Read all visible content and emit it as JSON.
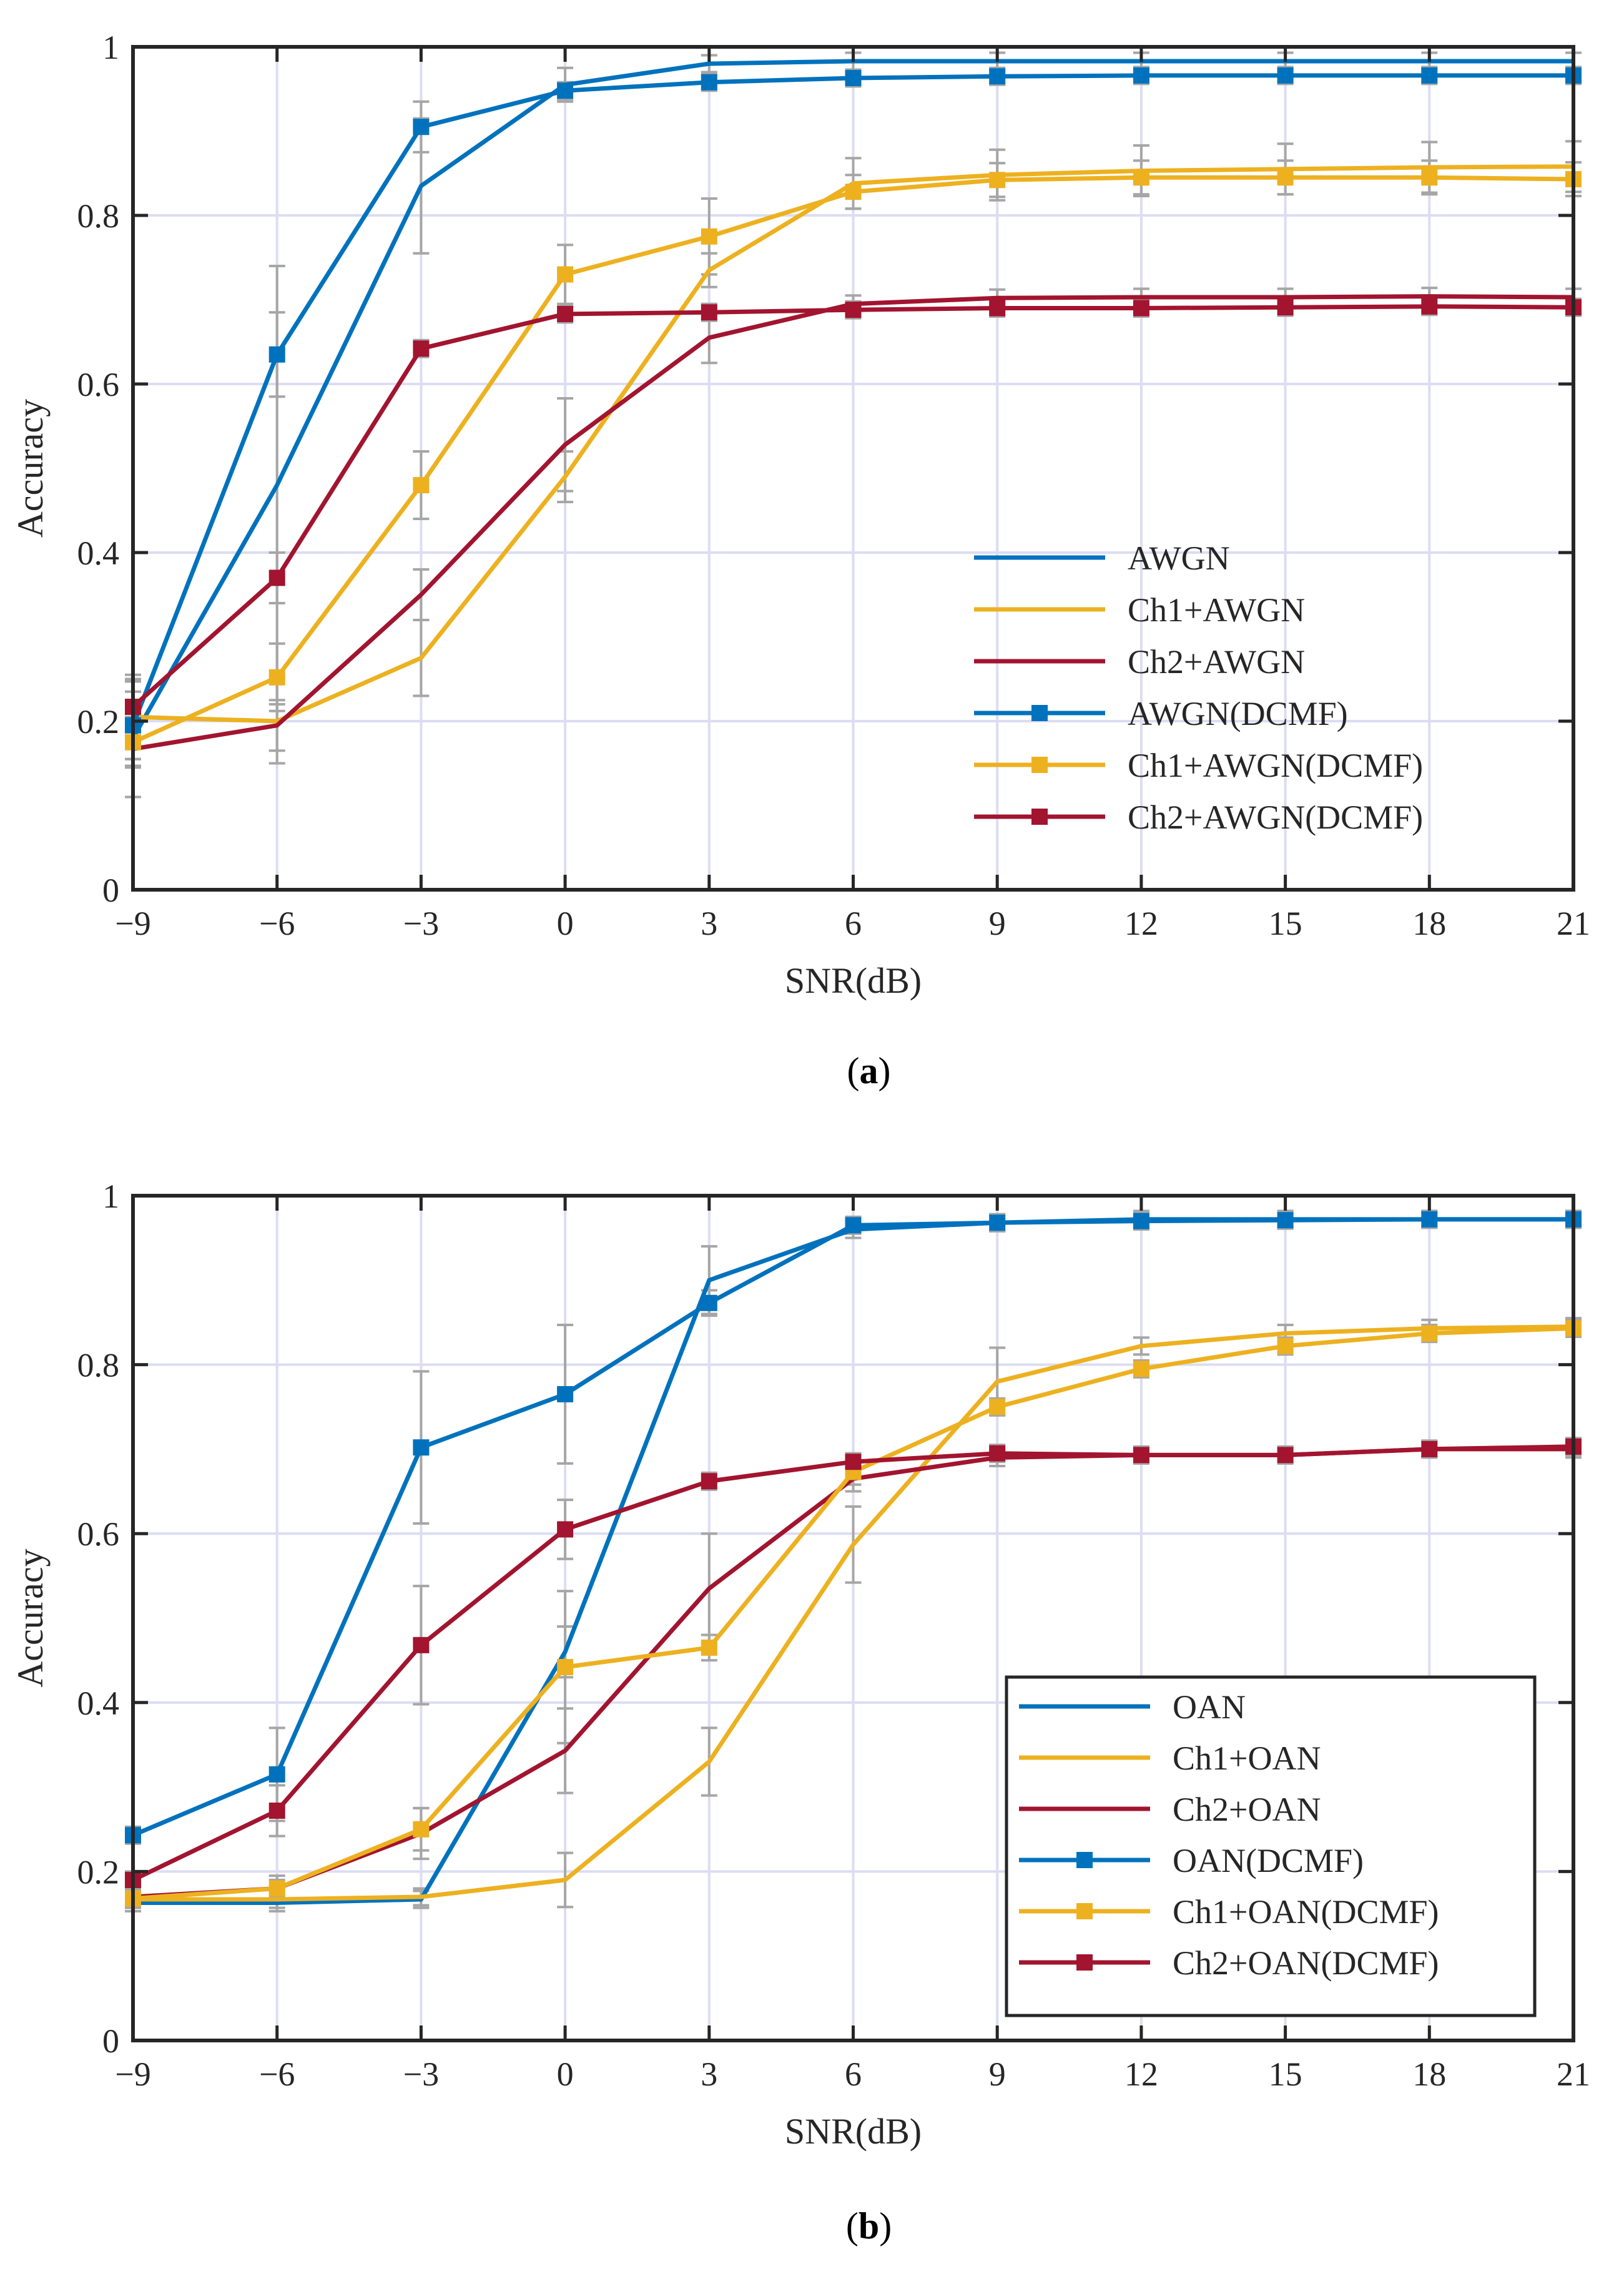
{
  "chart_data": [
    {
      "type": "line",
      "panel": "a",
      "caption_letter": "a",
      "xlabel": "SNR(dB)",
      "ylabel": "Accuracy",
      "x": [
        -9,
        -6,
        -3,
        0,
        3,
        6,
        9,
        12,
        15,
        18,
        21
      ],
      "xlim": [
        -9,
        21
      ],
      "ylim": [
        0,
        1
      ],
      "x_ticks": [
        -9,
        -6,
        -3,
        0,
        3,
        6,
        9,
        12,
        15,
        18,
        21
      ],
      "x_tick_labels": [
        "−9",
        "−6",
        "−3",
        "0",
        "3",
        "6",
        "9",
        "12",
        "15",
        "18",
        "21"
      ],
      "y_ticks": [
        0,
        0.2,
        0.4,
        0.6,
        0.8,
        1
      ],
      "y_tick_labels": [
        "0",
        "0.2",
        "0.4",
        "0.6",
        "0.8",
        "1"
      ],
      "grid": true,
      "legend_position": "bottom-right",
      "legend_box": false,
      "series": [
        {
          "name": "AWGN",
          "color": "#0072BD",
          "marker": "none",
          "values": [
            0.18,
            0.48,
            0.835,
            0.955,
            0.98,
            0.983,
            0.983,
            0.983,
            0.983,
            0.983,
            0.983
          ],
          "errors": [
            0.07,
            0.26,
            0.08,
            0.02,
            0.01,
            0.01,
            0.01,
            0.01,
            0.01,
            0.01,
            0.01
          ]
        },
        {
          "name": "Ch1+AWGN",
          "color": "#EDB120",
          "marker": "none",
          "values": [
            0.205,
            0.2,
            0.275,
            0.49,
            0.735,
            0.838,
            0.848,
            0.853,
            0.855,
            0.857,
            0.858
          ],
          "errors": [
            0.05,
            0.05,
            0.045,
            0.03,
            0.02,
            0.03,
            0.03,
            0.03,
            0.03,
            0.03,
            0.03
          ]
        },
        {
          "name": "Ch2+AWGN",
          "color": "#A2142F",
          "marker": "none",
          "values": [
            0.167,
            0.195,
            0.35,
            0.528,
            0.655,
            0.695,
            0.702,
            0.703,
            0.703,
            0.704,
            0.703
          ],
          "errors": [
            0.02,
            0.03,
            0.03,
            0.055,
            0.03,
            0.01,
            0.01,
            0.01,
            0.01,
            0.01,
            0.01
          ]
        },
        {
          "name": "AWGN(DCMF)",
          "color": "#0072BD",
          "marker": "square",
          "values": [
            0.195,
            0.635,
            0.905,
            0.948,
            0.958,
            0.963,
            0.965,
            0.966,
            0.966,
            0.966,
            0.966
          ],
          "errors": [
            0.04,
            0.05,
            0.03,
            0.01,
            0.01,
            0.01,
            0.01,
            0.01,
            0.01,
            0.01,
            0.01
          ]
        },
        {
          "name": "Ch1+AWGN(DCMF)",
          "color": "#EDB120",
          "marker": "square",
          "values": [
            0.175,
            0.252,
            0.48,
            0.73,
            0.775,
            0.828,
            0.842,
            0.845,
            0.845,
            0.845,
            0.843
          ],
          "errors": [
            0.03,
            0.04,
            0.04,
            0.035,
            0.045,
            0.02,
            0.02,
            0.02,
            0.02,
            0.02,
            0.02
          ]
        },
        {
          "name": "Ch2+AWGN(DCMF)",
          "color": "#A2142F",
          "marker": "square",
          "values": [
            0.217,
            0.37,
            0.642,
            0.683,
            0.685,
            0.688,
            0.69,
            0.69,
            0.691,
            0.692,
            0.691
          ],
          "errors": [
            0.03,
            0.03,
            0.01,
            0.01,
            0.01,
            0.01,
            0.01,
            0.01,
            0.01,
            0.01,
            0.01
          ]
        }
      ]
    },
    {
      "type": "line",
      "panel": "b",
      "caption_letter": "b",
      "xlabel": "SNR(dB)",
      "ylabel": "Accuracy",
      "x": [
        -9,
        -6,
        -3,
        0,
        3,
        6,
        9,
        12,
        15,
        18,
        21
      ],
      "xlim": [
        -9,
        21
      ],
      "ylim": [
        0,
        1
      ],
      "x_ticks": [
        -9,
        -6,
        -3,
        0,
        3,
        6,
        9,
        12,
        15,
        18,
        21
      ],
      "x_tick_labels": [
        "−9",
        "−6",
        "−3",
        "0",
        "3",
        "6",
        "9",
        "12",
        "15",
        "18",
        "21"
      ],
      "y_ticks": [
        0,
        0.2,
        0.4,
        0.6,
        0.8,
        1
      ],
      "y_tick_labels": [
        "0",
        "0.2",
        "0.4",
        "0.6",
        "0.8",
        "1"
      ],
      "grid": true,
      "legend_position": "bottom-right",
      "legend_box": true,
      "series": [
        {
          "name": "OAN",
          "color": "#0072BD",
          "marker": "none",
          "values": [
            0.163,
            0.163,
            0.167,
            0.46,
            0.9,
            0.96,
            0.968,
            0.972,
            0.972,
            0.972,
            0.972
          ],
          "errors": [
            0.01,
            0.01,
            0.01,
            0.03,
            0.04,
            0.01,
            0.01,
            0.01,
            0.01,
            0.01,
            0.01
          ]
        },
        {
          "name": "Ch1+OAN",
          "color": "#EDB120",
          "marker": "none",
          "values": [
            0.167,
            0.167,
            0.17,
            0.19,
            0.33,
            0.587,
            0.78,
            0.822,
            0.837,
            0.843,
            0.845
          ],
          "errors": [
            0.01,
            0.01,
            0.01,
            0.032,
            0.04,
            0.045,
            0.04,
            0.01,
            0.01,
            0.01,
            0.01
          ]
        },
        {
          "name": "Ch2+OAN",
          "color": "#A2142F",
          "marker": "none",
          "values": [
            0.17,
            0.18,
            0.245,
            0.343,
            0.535,
            0.665,
            0.69,
            0.693,
            0.693,
            0.7,
            0.7
          ],
          "errors": [
            0.01,
            0.01,
            0.03,
            0.05,
            0.065,
            0.015,
            0.01,
            0.01,
            0.01,
            0.01,
            0.01
          ]
        },
        {
          "name": "OAN(DCMF)",
          "color": "#0072BD",
          "marker": "square",
          "values": [
            0.243,
            0.315,
            0.702,
            0.765,
            0.873,
            0.965,
            0.968,
            0.97,
            0.971,
            0.972,
            0.972
          ],
          "errors": [
            0.01,
            0.055,
            0.09,
            0.082,
            0.015,
            0.01,
            0.01,
            0.01,
            0.01,
            0.01,
            0.01
          ]
        },
        {
          "name": "Ch1+OAN(DCMF)",
          "color": "#EDB120",
          "marker": "square",
          "values": [
            0.168,
            0.18,
            0.25,
            0.442,
            0.465,
            0.673,
            0.75,
            0.795,
            0.822,
            0.837,
            0.843
          ],
          "errors": [
            0.01,
            0.015,
            0.025,
            0.09,
            0.015,
            0.015,
            0.01,
            0.01,
            0.01,
            0.01,
            0.01
          ]
        },
        {
          "name": "Ch2+OAN(DCMF)",
          "color": "#A2142F",
          "marker": "square",
          "values": [
            0.19,
            0.272,
            0.468,
            0.605,
            0.662,
            0.685,
            0.695,
            0.693,
            0.693,
            0.7,
            0.703
          ],
          "errors": [
            0.01,
            0.03,
            0.07,
            0.035,
            0.01,
            0.01,
            0.01,
            0.01,
            0.01,
            0.01,
            0.01
          ]
        }
      ]
    }
  ]
}
